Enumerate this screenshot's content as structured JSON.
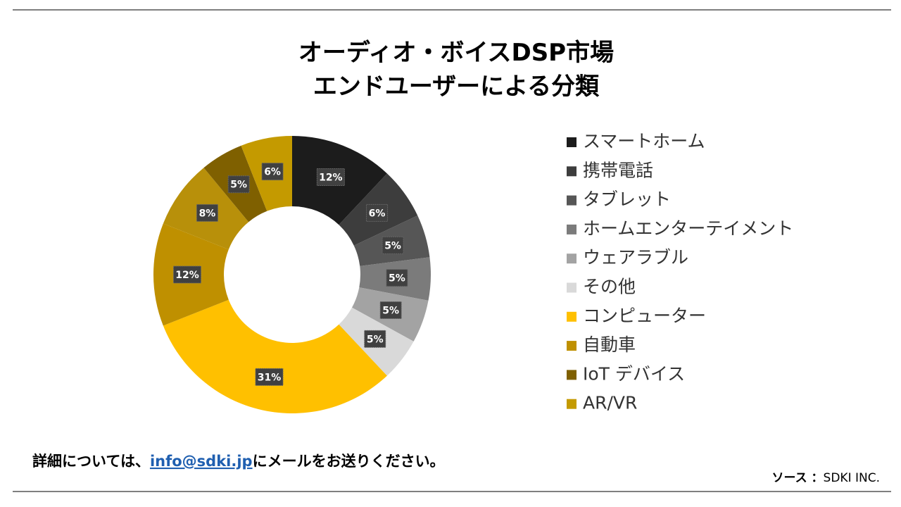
{
  "chart_data": {
    "type": "donut",
    "title": [
      "オーディオ・ボイスDSP市場",
      "エンドユーザーによる分類"
    ],
    "categories": [
      "スマートホーム",
      "携帯電話",
      "タブレット",
      "ホームエンターテイメント",
      "ウェアラブル",
      "その他",
      "コンピューター",
      "自動車",
      null,
      "IoT デバイス",
      "AR/VR"
    ],
    "values": [
      12,
      6,
      5,
      5,
      5,
      5,
      31,
      12,
      8,
      5,
      6
    ],
    "value_labels": [
      "12%",
      "6%",
      "5%",
      "5%",
      "5%",
      "5%",
      "31%",
      "12%",
      "8%",
      "5%",
      "6%"
    ],
    "colors": [
      "#1c1c1c",
      "#3d3d3d",
      "#565656",
      "#7b7b7b",
      "#a3a3a3",
      "#d9d9d9",
      "#ffc000",
      "#bf9000",
      "#b8900a",
      "#7f6000",
      "#c49a00"
    ],
    "legend": "right"
  },
  "footer": {
    "prefix": "詳細については、",
    "email": "info@sdki.jp",
    "suffix": "にメールをお送りください。"
  },
  "source": {
    "label": "ソース ：",
    "name": "SDKI INC."
  }
}
